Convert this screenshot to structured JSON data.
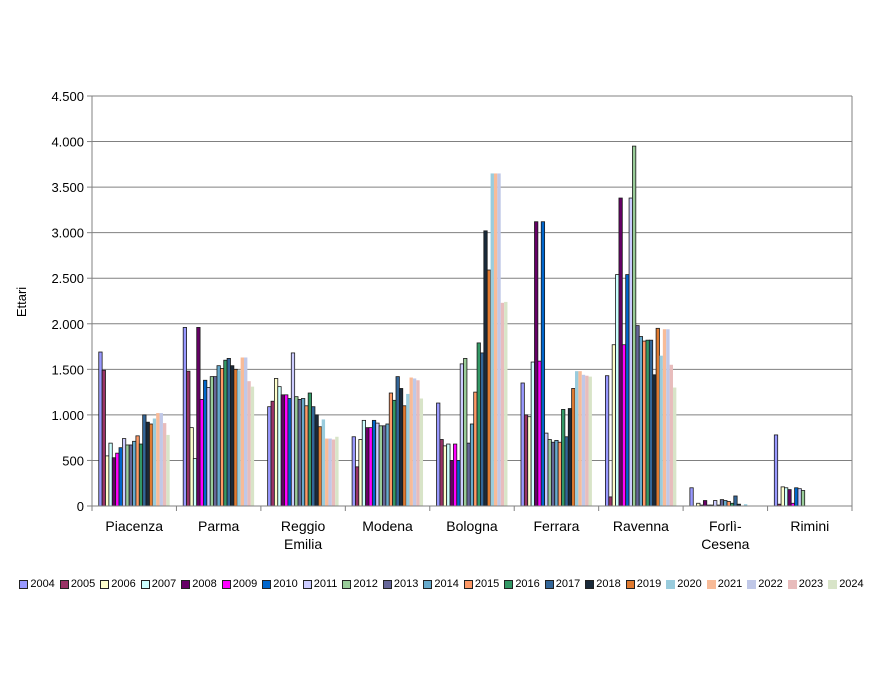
{
  "chart_data": {
    "type": "bar",
    "title": "",
    "xlabel": "",
    "ylabel": "Ettari",
    "ylim": [
      0,
      4500
    ],
    "yticks": [
      0,
      500,
      1000,
      1500,
      2000,
      2500,
      3000,
      3500,
      4000,
      4500
    ],
    "ytick_labels": [
      "0",
      "500",
      "1.000",
      "1.500",
      "2.000",
      "2.500",
      "3.000",
      "3.500",
      "4.000",
      "4.500"
    ],
    "grid": true,
    "legend_position": "bottom",
    "categories": [
      "Piacenza",
      "Parma",
      "Reggio Emilia",
      "Modena",
      "Bologna",
      "Ferrara",
      "Ravenna",
      "Forlì-Cesena",
      "Rimini"
    ],
    "category_labels": [
      [
        "Piacenza"
      ],
      [
        "Parma"
      ],
      [
        "Reggio",
        "Emilia"
      ],
      [
        "Modena"
      ],
      [
        "Bologna"
      ],
      [
        "Ferrara"
      ],
      [
        "Ravenna"
      ],
      [
        "Forlì-",
        "Cesena"
      ],
      [
        "Rimini"
      ]
    ],
    "series": [
      {
        "name": "2004",
        "color": "#9999ff",
        "outlined": true,
        "values": [
          1690,
          1960,
          1090,
          760,
          1130,
          1350,
          1430,
          200,
          780
        ]
      },
      {
        "name": "2005",
        "color": "#993366",
        "outlined": true,
        "values": [
          1490,
          1480,
          1150,
          430,
          730,
          1000,
          100,
          0,
          20
        ]
      },
      {
        "name": "2006",
        "color": "#ffffcc",
        "outlined": true,
        "values": [
          550,
          860,
          1400,
          730,
          660,
          980,
          1770,
          30,
          210
        ]
      },
      {
        "name": "2007",
        "color": "#ccffff",
        "outlined": true,
        "values": [
          690,
          520,
          1310,
          940,
          680,
          1580,
          2540,
          10,
          200
        ]
      },
      {
        "name": "2008",
        "color": "#660066",
        "outlined": true,
        "values": [
          530,
          1960,
          1220,
          860,
          500,
          3120,
          3380,
          60,
          180
        ]
      },
      {
        "name": "2009",
        "color": "#ff00ff",
        "outlined": true,
        "values": [
          580,
          1170,
          1220,
          860,
          680,
          1590,
          1770,
          10,
          30
        ]
      },
      {
        "name": "2010",
        "color": "#0066cc",
        "outlined": true,
        "values": [
          640,
          1380,
          1180,
          940,
          500,
          3120,
          2540,
          10,
          200
        ]
      },
      {
        "name": "2011",
        "color": "#ccccff",
        "outlined": true,
        "values": [
          740,
          1300,
          1680,
          910,
          1560,
          800,
          3380,
          60,
          190
        ]
      },
      {
        "name": "2012",
        "color": "#99cc99",
        "outlined": true,
        "values": [
          670,
          1420,
          1200,
          880,
          1620,
          730,
          3950,
          10,
          170
        ]
      },
      {
        "name": "2013",
        "color": "#666699",
        "outlined": true,
        "values": [
          670,
          1420,
          1170,
          880,
          690,
          700,
          1980,
          70,
          0
        ]
      },
      {
        "name": "2014",
        "color": "#66aacc",
        "outlined": true,
        "values": [
          710,
          1540,
          1180,
          900,
          900,
          720,
          1860,
          60,
          0
        ]
      },
      {
        "name": "2015",
        "color": "#ff9966",
        "outlined": true,
        "values": [
          770,
          1510,
          1100,
          1240,
          1250,
          700,
          1810,
          50,
          0
        ]
      },
      {
        "name": "2016",
        "color": "#339966",
        "outlined": true,
        "values": [
          680,
          1600,
          1240,
          1160,
          1790,
          1060,
          1820,
          30,
          0
        ]
      },
      {
        "name": "2017",
        "color": "#336699",
        "outlined": true,
        "values": [
          1000,
          1620,
          1090,
          1420,
          1680,
          760,
          1820,
          110,
          0
        ]
      },
      {
        "name": "2018",
        "color": "#1a2a3a",
        "outlined": true,
        "values": [
          920,
          1540,
          1000,
          1290,
          3020,
          1070,
          1440,
          20,
          0
        ]
      },
      {
        "name": "2019",
        "color": "#e07a30",
        "outlined": true,
        "values": [
          900,
          1500,
          870,
          1100,
          2590,
          1290,
          1950,
          0,
          0
        ]
      },
      {
        "name": "2020",
        "color": "#99ccdd",
        "outlined": false,
        "values": [
          960,
          1490,
          950,
          1230,
          3650,
          1480,
          1650,
          20,
          0
        ]
      },
      {
        "name": "2021",
        "color": "#f8bb98",
        "outlined": false,
        "values": [
          1020,
          1630,
          740,
          1410,
          3650,
          1480,
          1940,
          0,
          0
        ]
      },
      {
        "name": "2022",
        "color": "#c0c8e8",
        "outlined": false,
        "values": [
          1020,
          1630,
          740,
          1400,
          3650,
          1440,
          1940,
          0,
          0
        ]
      },
      {
        "name": "2023",
        "color": "#e8bcbc",
        "outlined": false,
        "values": [
          910,
          1370,
          730,
          1380,
          2230,
          1430,
          1550,
          0,
          0
        ]
      },
      {
        "name": "2024",
        "color": "#d8e4c8",
        "outlined": false,
        "values": [
          780,
          1310,
          760,
          1180,
          2240,
          1420,
          1300,
          0,
          0
        ]
      }
    ]
  }
}
